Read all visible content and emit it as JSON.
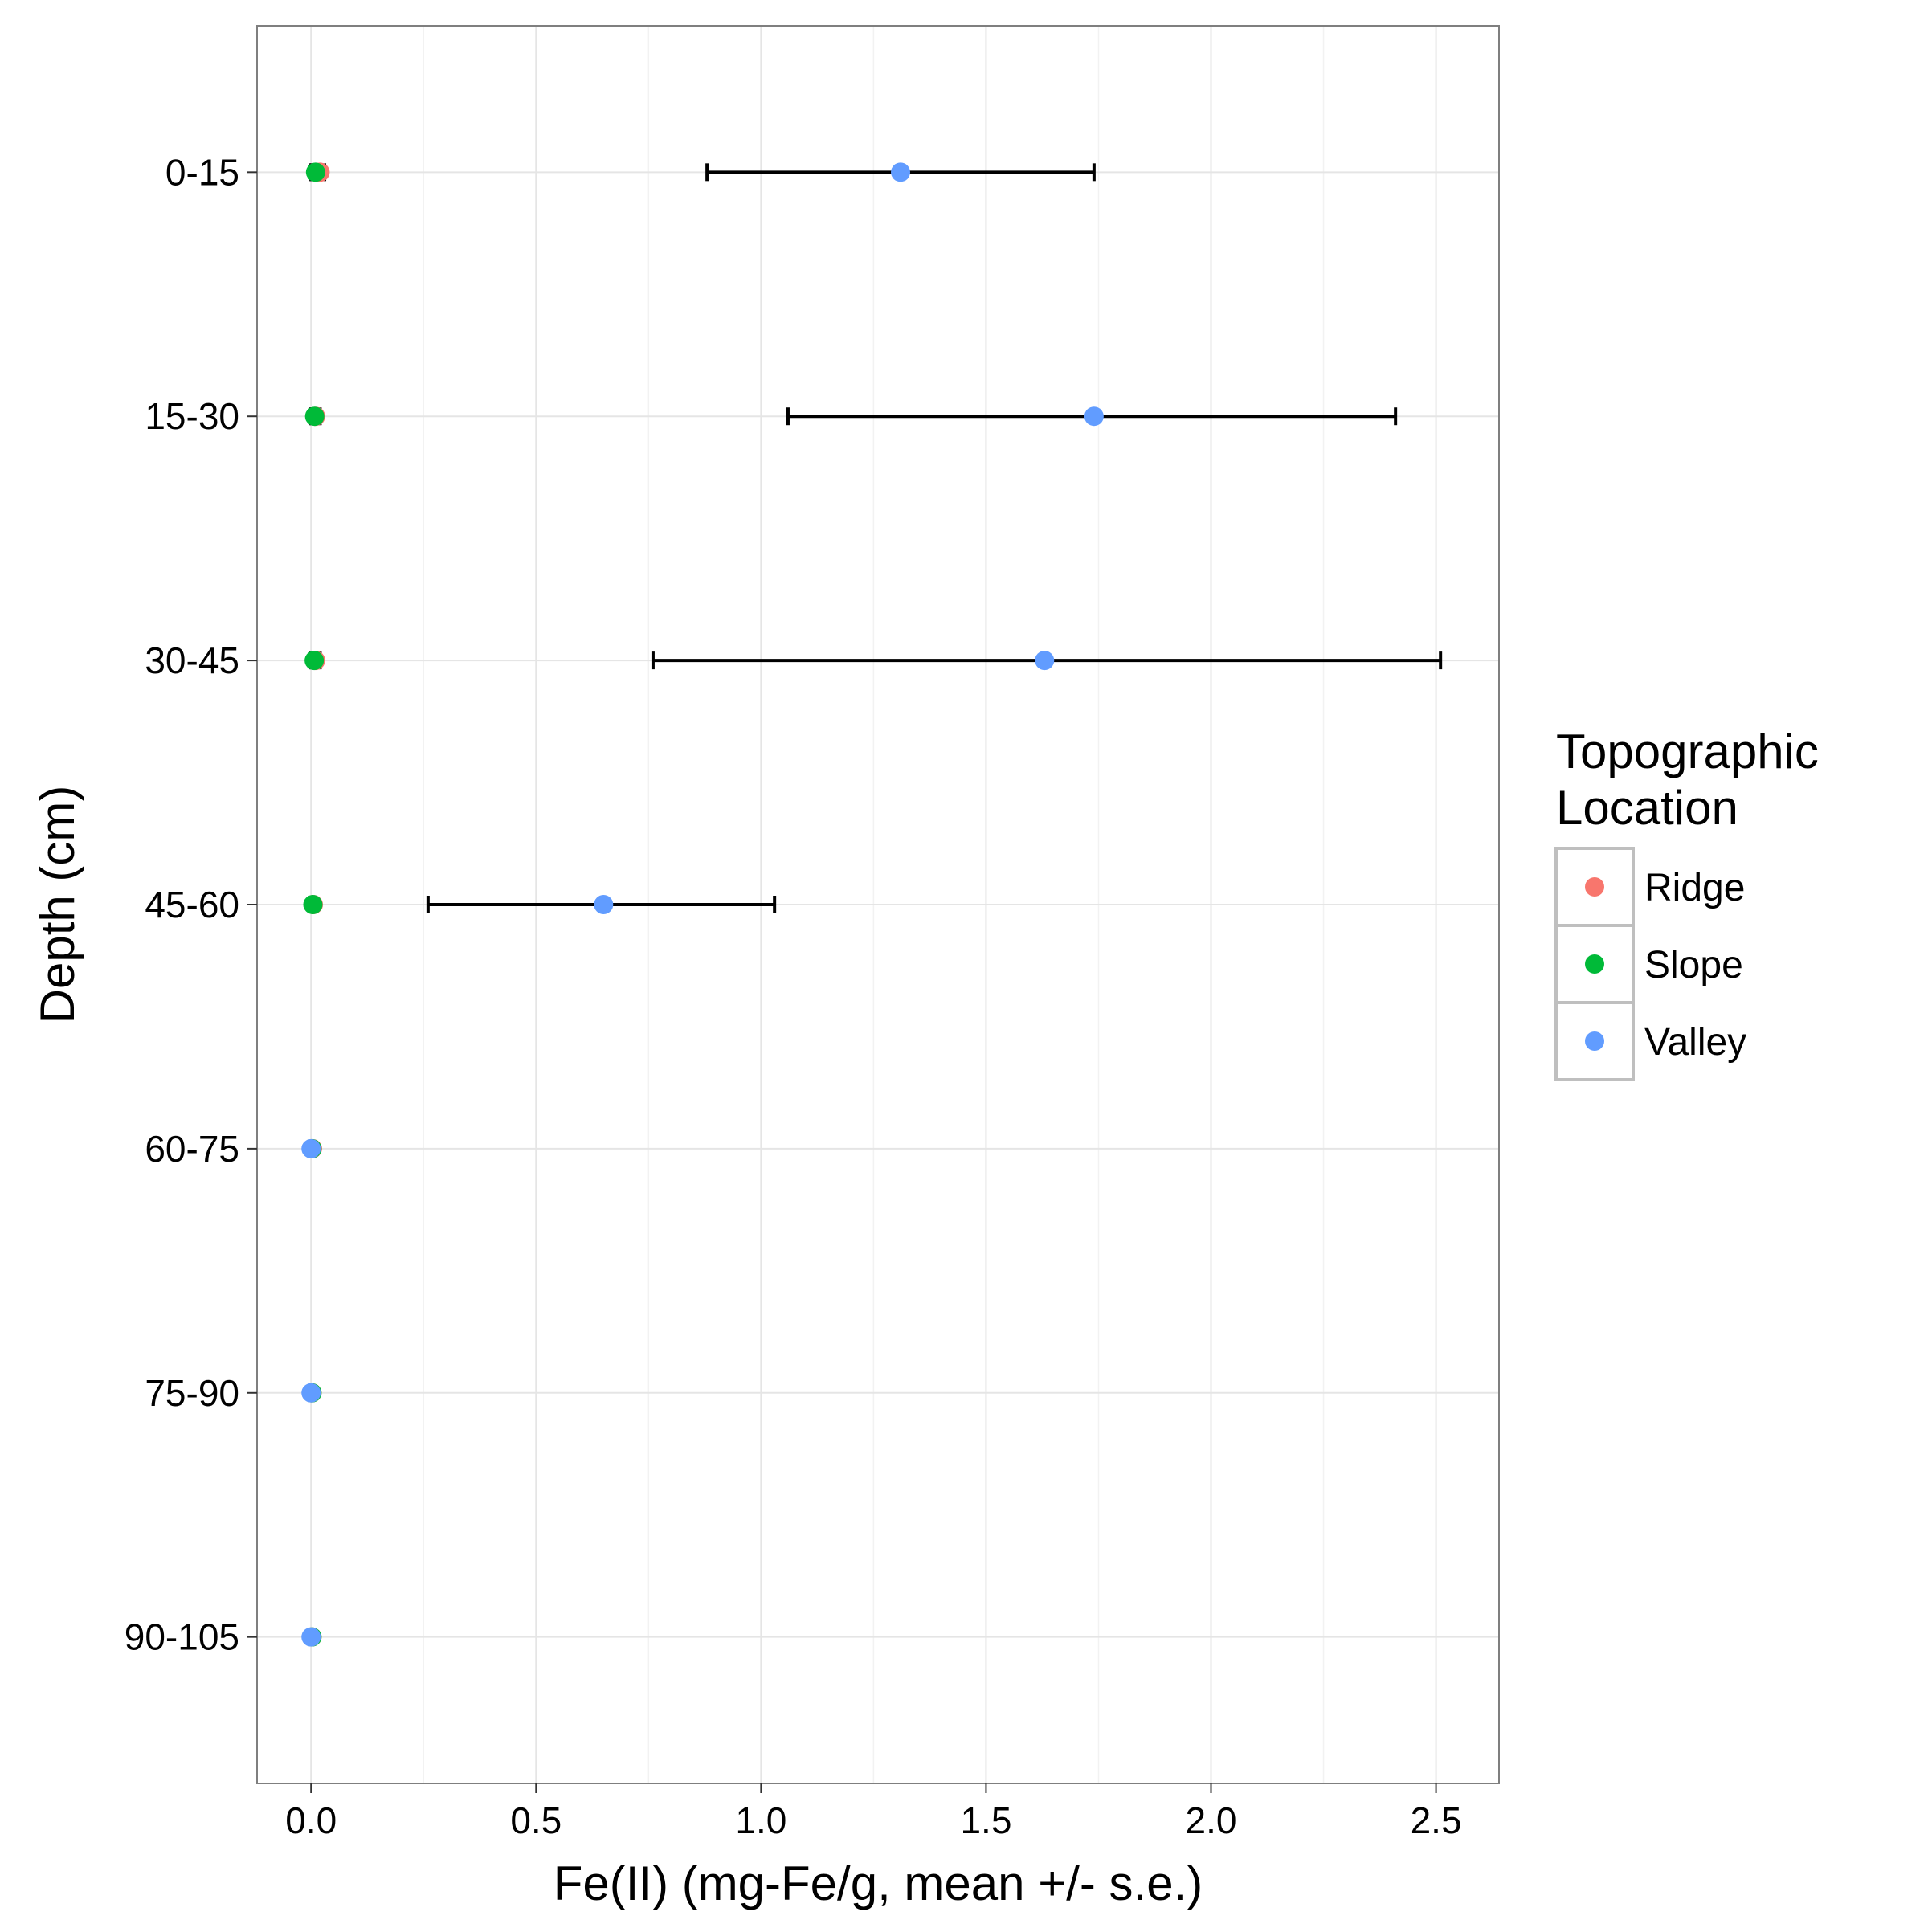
{
  "chart_data": {
    "type": "scatter",
    "orientation": "horizontal",
    "title": "",
    "xlabel": "Fe(II) (mg-Fe/g, mean +/- s.e.)",
    "ylabel": "Depth (cm)",
    "xlim": [
      -0.12,
      2.64
    ],
    "x_ticks": [
      0.0,
      0.5,
      1.0,
      1.5,
      2.0,
      2.5
    ],
    "x_tick_labels": [
      "0.0",
      "0.5",
      "1.0",
      "1.5",
      "2.0",
      "2.5"
    ],
    "categories": [
      "0-15",
      "15-30",
      "30-45",
      "45-60",
      "60-75",
      "75-90",
      "90-105"
    ],
    "grid": true,
    "legend": {
      "title_lines": [
        "Topographic",
        "Location"
      ],
      "placement": "right"
    },
    "error_bar_color": "#000000",
    "series": [
      {
        "name": "Ridge",
        "color": "#F8766D",
        "values": [
          0.02,
          0.01,
          0.01,
          0.005,
          0.003,
          0.002,
          0.002
        ],
        "se_low": [
          0.0,
          0.0,
          0.0,
          0.0,
          0.0,
          0.0,
          0.0
        ],
        "se_high": [
          0.03,
          0.02,
          0.02,
          0.01,
          0.005,
          0.004,
          0.004
        ]
      },
      {
        "name": "Slope",
        "color": "#00BA38",
        "values": [
          0.01,
          0.008,
          0.007,
          0.004,
          0.002,
          0.002,
          0.002
        ],
        "se_low": [
          0.0,
          0.0,
          0.0,
          0.0,
          0.0,
          0.0,
          0.0
        ],
        "se_high": [
          0.02,
          0.015,
          0.015,
          0.008,
          0.004,
          0.004,
          0.004
        ]
      },
      {
        "name": "Valley",
        "color": "#619CFF",
        "values": [
          1.31,
          1.74,
          1.63,
          0.65,
          0.0,
          0.0,
          0.0
        ],
        "se_low": [
          0.88,
          1.06,
          0.76,
          0.26,
          0.0,
          0.0,
          0.0
        ],
        "se_high": [
          1.74,
          2.41,
          2.51,
          1.03,
          0.0,
          0.0,
          0.0
        ]
      }
    ]
  }
}
